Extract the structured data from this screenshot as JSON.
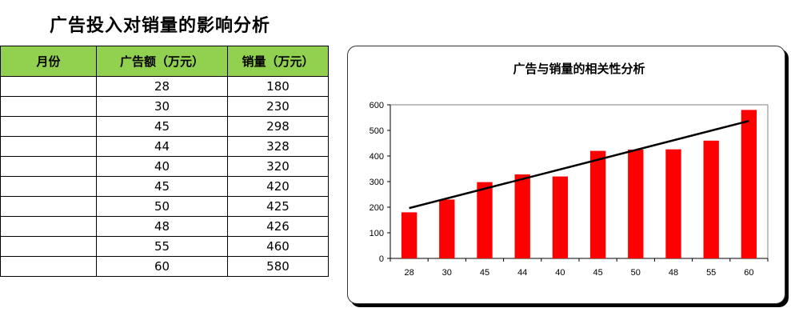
{
  "page_title": "广告投入对销量的影响分析",
  "table": {
    "headers": [
      "月份",
      "广告额（万元）",
      "销量（万元）"
    ],
    "rows": [
      {
        "month": "",
        "ad": "28",
        "sales": "180"
      },
      {
        "month": "",
        "ad": "30",
        "sales": "230"
      },
      {
        "month": "",
        "ad": "45",
        "sales": "298"
      },
      {
        "month": "",
        "ad": "44",
        "sales": "328"
      },
      {
        "month": "",
        "ad": "40",
        "sales": "320"
      },
      {
        "month": "",
        "ad": "45",
        "sales": "420"
      },
      {
        "month": "",
        "ad": "50",
        "sales": "425"
      },
      {
        "month": "",
        "ad": "48",
        "sales": "426"
      },
      {
        "month": "",
        "ad": "55",
        "sales": "460"
      },
      {
        "month": "",
        "ad": "60",
        "sales": "580"
      }
    ]
  },
  "chart_data": {
    "type": "bar",
    "title": "广告与销量的相关性分析",
    "categories": [
      "28",
      "30",
      "45",
      "44",
      "40",
      "45",
      "50",
      "48",
      "55",
      "60"
    ],
    "series": [
      {
        "values": [
          180,
          230,
          298,
          328,
          320,
          420,
          425,
          426,
          460,
          580
        ],
        "color": "#ff0000"
      }
    ],
    "trendline": {
      "type": "linear",
      "color": "#000000"
    },
    "yticks": [
      "0",
      "100",
      "200",
      "300",
      "400",
      "500",
      "600"
    ],
    "ylim": [
      0,
      600
    ],
    "xlabel": "",
    "ylabel": "",
    "grid": false,
    "legend": "none"
  }
}
